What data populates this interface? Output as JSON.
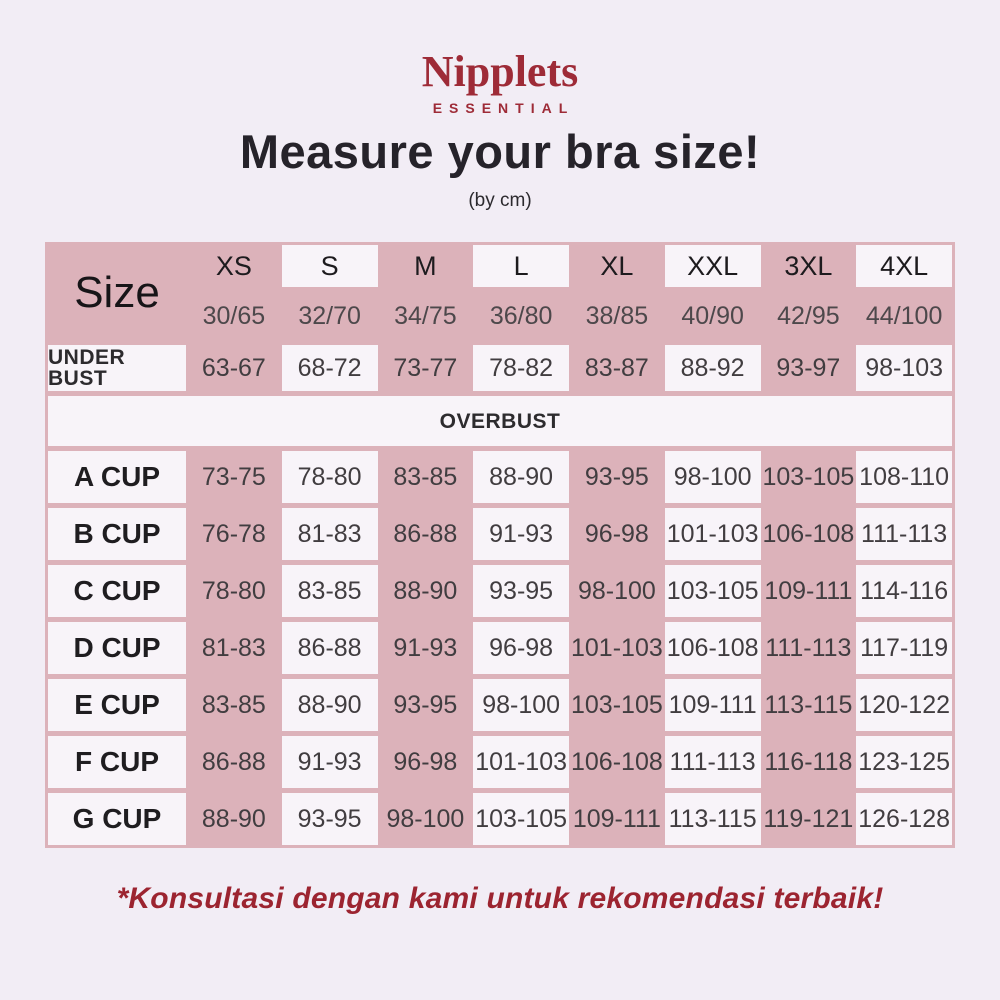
{
  "page": {
    "background": "#f2edf5"
  },
  "logo": {
    "brand": "Nipplets",
    "sub": "ESSENTIAL",
    "color": "#9e2b37"
  },
  "header": {
    "title": "Measure your bra size!",
    "subtitle": "(by cm)"
  },
  "table": {
    "pink_color": "#dcb2ba",
    "cell_color": "#f8f4f9",
    "size_label": "Size",
    "columns": [
      {
        "label": "XS",
        "size": "30/65",
        "white": false
      },
      {
        "label": "S",
        "size": "32/70",
        "white": true
      },
      {
        "label": "M",
        "size": "34/75",
        "white": false
      },
      {
        "label": "L",
        "size": "36/80",
        "white": true
      },
      {
        "label": "XL",
        "size": "38/85",
        "white": false
      },
      {
        "label": "XXL",
        "size": "40/90",
        "white": true
      },
      {
        "label": "3XL",
        "size": "42/95",
        "white": false
      },
      {
        "label": "4XL",
        "size": "44/100",
        "white": true
      }
    ],
    "under_bust": {
      "label": "UNDER BUST",
      "values": [
        "63-67",
        "68-72",
        "73-77",
        "78-82",
        "83-87",
        "88-92",
        "93-97",
        "98-103"
      ]
    },
    "overbust_label": "OVERBUST",
    "cups": [
      {
        "label": "A CUP",
        "values": [
          "73-75",
          "78-80",
          "83-85",
          "88-90",
          "93-95",
          "98-100",
          "103-105",
          "108-110"
        ]
      },
      {
        "label": "B CUP",
        "values": [
          "76-78",
          "81-83",
          "86-88",
          "91-93",
          "96-98",
          "101-103",
          "106-108",
          "111-113"
        ]
      },
      {
        "label": "C CUP",
        "values": [
          "78-80",
          "83-85",
          "88-90",
          "93-95",
          "98-100",
          "103-105",
          "109-111",
          "114-116"
        ]
      },
      {
        "label": "D CUP",
        "values": [
          "81-83",
          "86-88",
          "91-93",
          "96-98",
          "101-103",
          "106-108",
          "111-113",
          "117-119"
        ]
      },
      {
        "label": "E CUP",
        "values": [
          "83-85",
          "88-90",
          "93-95",
          "98-100",
          "103-105",
          "109-111",
          "113-115",
          "120-122"
        ]
      },
      {
        "label": "F CUP",
        "values": [
          "86-88",
          "91-93",
          "96-98",
          "101-103",
          "106-108",
          "111-113",
          "116-118",
          "123-125"
        ]
      },
      {
        "label": "G CUP",
        "values": [
          "88-90",
          "93-95",
          "98-100",
          "103-105",
          "109-111",
          "113-115",
          "119-121",
          "126-128"
        ]
      }
    ]
  },
  "footer": {
    "note": "*Konsultasi dengan kami untuk rekomendasi terbaik!",
    "color": "#9c2430"
  }
}
